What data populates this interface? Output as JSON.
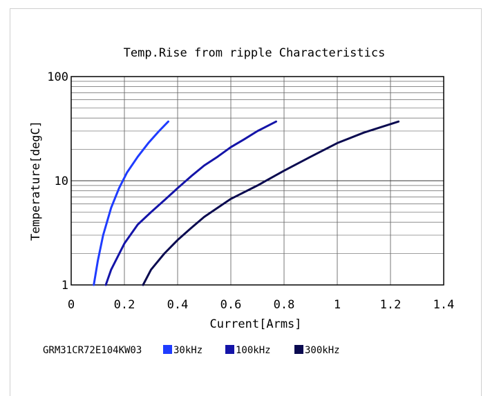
{
  "chart_data": {
    "type": "line",
    "title": "Temp.Rise from ripple Characteristics",
    "xlabel": "Current[Arms]",
    "ylabel": "Temperature[degC]",
    "xlim": [
      0,
      1.4
    ],
    "ylim": [
      1,
      100
    ],
    "yscale": "log",
    "grid": true,
    "x_ticks": [
      "0",
      "0.2",
      "0.4",
      "0.6",
      "0.8",
      "1",
      "1.2",
      "1.4"
    ],
    "x_tick_values": [
      0,
      0.2,
      0.4,
      0.6,
      0.8,
      1,
      1.2,
      1.4
    ],
    "y_ticks": [
      "1",
      "10",
      "100"
    ],
    "y_tick_values": [
      1,
      10,
      100
    ],
    "legend_prefix": "GRM31CR72E104KW03",
    "legend_position": "bottom",
    "series": [
      {
        "name": "30kHz",
        "color": "#1f3cff",
        "points": [
          [
            0.085,
            1.0
          ],
          [
            0.1,
            1.7
          ],
          [
            0.12,
            3.0
          ],
          [
            0.15,
            5.5
          ],
          [
            0.18,
            8.5
          ],
          [
            0.21,
            12
          ],
          [
            0.25,
            17
          ],
          [
            0.29,
            23
          ],
          [
            0.33,
            30
          ],
          [
            0.365,
            37
          ]
        ]
      },
      {
        "name": "100kHz",
        "color": "#1414a8",
        "points": [
          [
            0.13,
            1.0
          ],
          [
            0.15,
            1.4
          ],
          [
            0.2,
            2.5
          ],
          [
            0.25,
            3.8
          ],
          [
            0.3,
            5.0
          ],
          [
            0.35,
            6.5
          ],
          [
            0.4,
            8.5
          ],
          [
            0.45,
            11
          ],
          [
            0.5,
            14
          ],
          [
            0.55,
            17
          ],
          [
            0.6,
            21
          ],
          [
            0.65,
            25
          ],
          [
            0.7,
            30
          ],
          [
            0.77,
            37
          ]
        ]
      },
      {
        "name": "300kHz",
        "color": "#0a0a50",
        "points": [
          [
            0.27,
            1.0
          ],
          [
            0.3,
            1.4
          ],
          [
            0.35,
            2.0
          ],
          [
            0.4,
            2.7
          ],
          [
            0.45,
            3.5
          ],
          [
            0.5,
            4.5
          ],
          [
            0.55,
            5.5
          ],
          [
            0.6,
            6.7
          ],
          [
            0.7,
            9.0
          ],
          [
            0.8,
            12.5
          ],
          [
            0.9,
            17
          ],
          [
            1.0,
            23
          ],
          [
            1.1,
            29
          ],
          [
            1.23,
            37
          ]
        ]
      }
    ]
  }
}
